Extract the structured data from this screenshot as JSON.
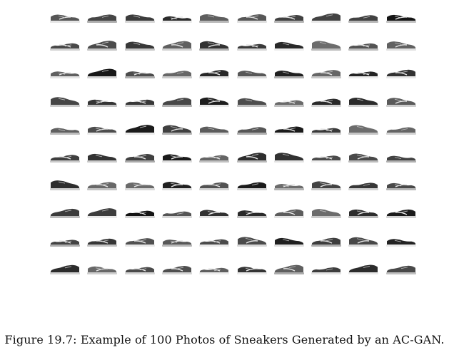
{
  "figure": {
    "caption": "Figure 19.7: Example of 100 Photos of Sneakers Generated by an AC-GAN.",
    "grid": {
      "rows": 10,
      "cols": 10,
      "subject": "sneaker"
    }
  }
}
